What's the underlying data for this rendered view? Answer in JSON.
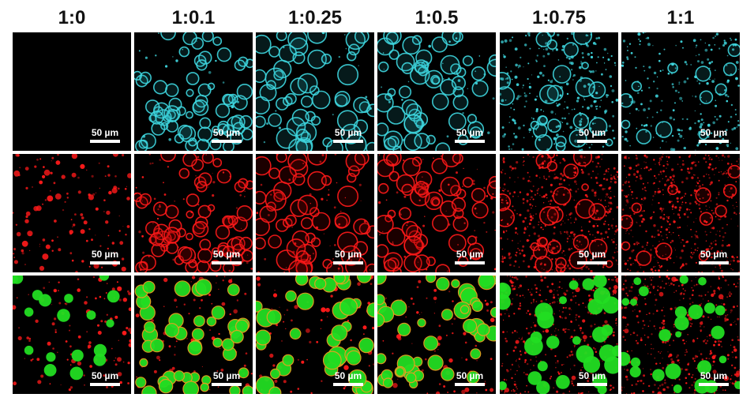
{
  "figure": {
    "column_labels": [
      "1:0",
      "1:0.1",
      "1:0.25",
      "1:0.5",
      "1:0.75",
      "1:1"
    ],
    "rows": [
      "cyan",
      "red",
      "merge"
    ],
    "scale_bar_label": "50 µm",
    "colors": {
      "cyan": "#3fd8e0",
      "red": "#ff1a1a",
      "green": "#22dd22",
      "orange": "#e8a020",
      "background": "#000000"
    }
  }
}
